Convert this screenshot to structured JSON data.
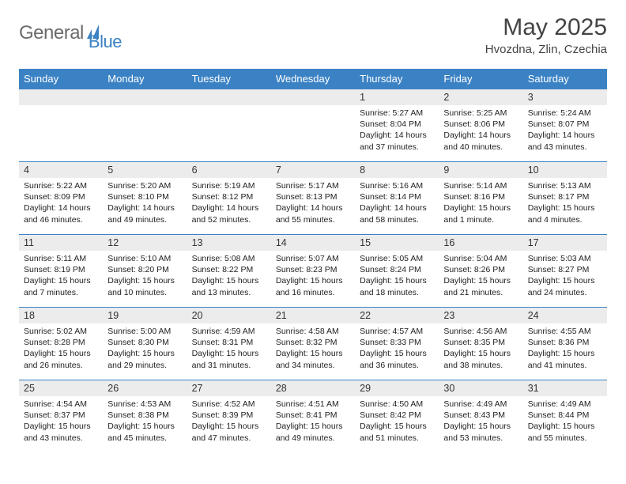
{
  "brand": {
    "part1": "General",
    "part2": "Blue"
  },
  "title": "May 2025",
  "location": "Hvozdna, Zlin, Czechia",
  "colors": {
    "header_bg": "#3b82c4",
    "header_text": "#ffffff",
    "daynum_bg": "#ececec",
    "rule": "#3b82c4",
    "logo_gray": "#6b6b6b",
    "logo_blue": "#3b82c4"
  },
  "weekdays": [
    "Sunday",
    "Monday",
    "Tuesday",
    "Wednesday",
    "Thursday",
    "Friday",
    "Saturday"
  ],
  "weeks": [
    [
      {
        "n": "",
        "sunrise": "",
        "sunset": "",
        "daylight": ""
      },
      {
        "n": "",
        "sunrise": "",
        "sunset": "",
        "daylight": ""
      },
      {
        "n": "",
        "sunrise": "",
        "sunset": "",
        "daylight": ""
      },
      {
        "n": "",
        "sunrise": "",
        "sunset": "",
        "daylight": ""
      },
      {
        "n": "1",
        "sunrise": "Sunrise: 5:27 AM",
        "sunset": "Sunset: 8:04 PM",
        "daylight": "Daylight: 14 hours and 37 minutes."
      },
      {
        "n": "2",
        "sunrise": "Sunrise: 5:25 AM",
        "sunset": "Sunset: 8:06 PM",
        "daylight": "Daylight: 14 hours and 40 minutes."
      },
      {
        "n": "3",
        "sunrise": "Sunrise: 5:24 AM",
        "sunset": "Sunset: 8:07 PM",
        "daylight": "Daylight: 14 hours and 43 minutes."
      }
    ],
    [
      {
        "n": "4",
        "sunrise": "Sunrise: 5:22 AM",
        "sunset": "Sunset: 8:09 PM",
        "daylight": "Daylight: 14 hours and 46 minutes."
      },
      {
        "n": "5",
        "sunrise": "Sunrise: 5:20 AM",
        "sunset": "Sunset: 8:10 PM",
        "daylight": "Daylight: 14 hours and 49 minutes."
      },
      {
        "n": "6",
        "sunrise": "Sunrise: 5:19 AM",
        "sunset": "Sunset: 8:12 PM",
        "daylight": "Daylight: 14 hours and 52 minutes."
      },
      {
        "n": "7",
        "sunrise": "Sunrise: 5:17 AM",
        "sunset": "Sunset: 8:13 PM",
        "daylight": "Daylight: 14 hours and 55 minutes."
      },
      {
        "n": "8",
        "sunrise": "Sunrise: 5:16 AM",
        "sunset": "Sunset: 8:14 PM",
        "daylight": "Daylight: 14 hours and 58 minutes."
      },
      {
        "n": "9",
        "sunrise": "Sunrise: 5:14 AM",
        "sunset": "Sunset: 8:16 PM",
        "daylight": "Daylight: 15 hours and 1 minute."
      },
      {
        "n": "10",
        "sunrise": "Sunrise: 5:13 AM",
        "sunset": "Sunset: 8:17 PM",
        "daylight": "Daylight: 15 hours and 4 minutes."
      }
    ],
    [
      {
        "n": "11",
        "sunrise": "Sunrise: 5:11 AM",
        "sunset": "Sunset: 8:19 PM",
        "daylight": "Daylight: 15 hours and 7 minutes."
      },
      {
        "n": "12",
        "sunrise": "Sunrise: 5:10 AM",
        "sunset": "Sunset: 8:20 PM",
        "daylight": "Daylight: 15 hours and 10 minutes."
      },
      {
        "n": "13",
        "sunrise": "Sunrise: 5:08 AM",
        "sunset": "Sunset: 8:22 PM",
        "daylight": "Daylight: 15 hours and 13 minutes."
      },
      {
        "n": "14",
        "sunrise": "Sunrise: 5:07 AM",
        "sunset": "Sunset: 8:23 PM",
        "daylight": "Daylight: 15 hours and 16 minutes."
      },
      {
        "n": "15",
        "sunrise": "Sunrise: 5:05 AM",
        "sunset": "Sunset: 8:24 PM",
        "daylight": "Daylight: 15 hours and 18 minutes."
      },
      {
        "n": "16",
        "sunrise": "Sunrise: 5:04 AM",
        "sunset": "Sunset: 8:26 PM",
        "daylight": "Daylight: 15 hours and 21 minutes."
      },
      {
        "n": "17",
        "sunrise": "Sunrise: 5:03 AM",
        "sunset": "Sunset: 8:27 PM",
        "daylight": "Daylight: 15 hours and 24 minutes."
      }
    ],
    [
      {
        "n": "18",
        "sunrise": "Sunrise: 5:02 AM",
        "sunset": "Sunset: 8:28 PM",
        "daylight": "Daylight: 15 hours and 26 minutes."
      },
      {
        "n": "19",
        "sunrise": "Sunrise: 5:00 AM",
        "sunset": "Sunset: 8:30 PM",
        "daylight": "Daylight: 15 hours and 29 minutes."
      },
      {
        "n": "20",
        "sunrise": "Sunrise: 4:59 AM",
        "sunset": "Sunset: 8:31 PM",
        "daylight": "Daylight: 15 hours and 31 minutes."
      },
      {
        "n": "21",
        "sunrise": "Sunrise: 4:58 AM",
        "sunset": "Sunset: 8:32 PM",
        "daylight": "Daylight: 15 hours and 34 minutes."
      },
      {
        "n": "22",
        "sunrise": "Sunrise: 4:57 AM",
        "sunset": "Sunset: 8:33 PM",
        "daylight": "Daylight: 15 hours and 36 minutes."
      },
      {
        "n": "23",
        "sunrise": "Sunrise: 4:56 AM",
        "sunset": "Sunset: 8:35 PM",
        "daylight": "Daylight: 15 hours and 38 minutes."
      },
      {
        "n": "24",
        "sunrise": "Sunrise: 4:55 AM",
        "sunset": "Sunset: 8:36 PM",
        "daylight": "Daylight: 15 hours and 41 minutes."
      }
    ],
    [
      {
        "n": "25",
        "sunrise": "Sunrise: 4:54 AM",
        "sunset": "Sunset: 8:37 PM",
        "daylight": "Daylight: 15 hours and 43 minutes."
      },
      {
        "n": "26",
        "sunrise": "Sunrise: 4:53 AM",
        "sunset": "Sunset: 8:38 PM",
        "daylight": "Daylight: 15 hours and 45 minutes."
      },
      {
        "n": "27",
        "sunrise": "Sunrise: 4:52 AM",
        "sunset": "Sunset: 8:39 PM",
        "daylight": "Daylight: 15 hours and 47 minutes."
      },
      {
        "n": "28",
        "sunrise": "Sunrise: 4:51 AM",
        "sunset": "Sunset: 8:41 PM",
        "daylight": "Daylight: 15 hours and 49 minutes."
      },
      {
        "n": "29",
        "sunrise": "Sunrise: 4:50 AM",
        "sunset": "Sunset: 8:42 PM",
        "daylight": "Daylight: 15 hours and 51 minutes."
      },
      {
        "n": "30",
        "sunrise": "Sunrise: 4:49 AM",
        "sunset": "Sunset: 8:43 PM",
        "daylight": "Daylight: 15 hours and 53 minutes."
      },
      {
        "n": "31",
        "sunrise": "Sunrise: 4:49 AM",
        "sunset": "Sunset: 8:44 PM",
        "daylight": "Daylight: 15 hours and 55 minutes."
      }
    ]
  ]
}
